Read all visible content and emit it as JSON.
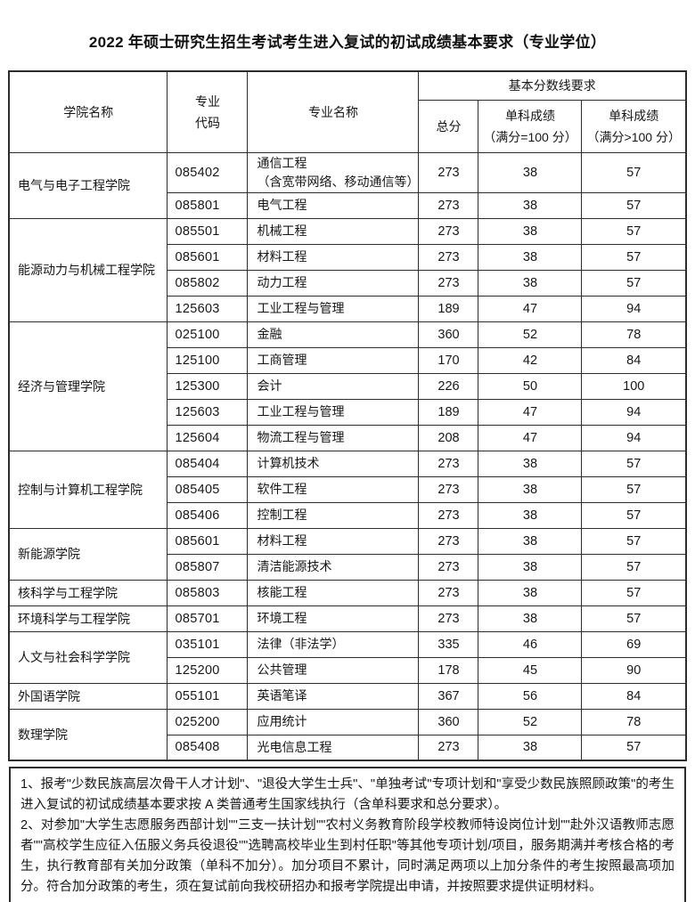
{
  "page": {
    "title": "2022 年硕士研究生招生考试考生进入复试的初试成绩基本要求（专业学位）"
  },
  "table": {
    "header": {
      "college": "学院名称",
      "code": "专业\n代码",
      "major": "专业名称",
      "score_group": "基本分数线要求",
      "total": "总分",
      "single_eq100": "单科成绩\n（满分=100 分）",
      "single_gt100": "单科成绩\n（满分>100 分）"
    },
    "colleges": [
      {
        "name": "电气与电子工程学院",
        "majors": [
          {
            "code": "085402",
            "name": "通信工程\n（含宽带网络、移动通信等）",
            "two_line": true,
            "total": "273",
            "eq100": "38",
            "gt100": "57"
          },
          {
            "code": "085801",
            "name": "电气工程",
            "total": "273",
            "eq100": "38",
            "gt100": "57"
          }
        ]
      },
      {
        "name": "能源动力与机械工程学院",
        "majors": [
          {
            "code": "085501",
            "name": "机械工程",
            "total": "273",
            "eq100": "38",
            "gt100": "57"
          },
          {
            "code": "085601",
            "name": "材料工程",
            "total": "273",
            "eq100": "38",
            "gt100": "57"
          },
          {
            "code": "085802",
            "name": "动力工程",
            "total": "273",
            "eq100": "38",
            "gt100": "57"
          },
          {
            "code": "125603",
            "name": "工业工程与管理",
            "total": "189",
            "eq100": "47",
            "gt100": "94"
          }
        ]
      },
      {
        "name": "经济与管理学院",
        "majors": [
          {
            "code": "025100",
            "name": "金融",
            "total": "360",
            "eq100": "52",
            "gt100": "78"
          },
          {
            "code": "125100",
            "name": "工商管理",
            "total": "170",
            "eq100": "42",
            "gt100": "84"
          },
          {
            "code": "125300",
            "name": "会计",
            "total": "226",
            "eq100": "50",
            "gt100": "100"
          },
          {
            "code": "125603",
            "name": "工业工程与管理",
            "total": "189",
            "eq100": "47",
            "gt100": "94"
          },
          {
            "code": "125604",
            "name": "物流工程与管理",
            "total": "208",
            "eq100": "47",
            "gt100": "94"
          }
        ]
      },
      {
        "name": "控制与计算机工程学院",
        "majors": [
          {
            "code": "085404",
            "name": "计算机技术",
            "total": "273",
            "eq100": "38",
            "gt100": "57"
          },
          {
            "code": "085405",
            "name": "软件工程",
            "total": "273",
            "eq100": "38",
            "gt100": "57"
          },
          {
            "code": "085406",
            "name": "控制工程",
            "total": "273",
            "eq100": "38",
            "gt100": "57"
          }
        ]
      },
      {
        "name": "新能源学院",
        "majors": [
          {
            "code": "085601",
            "name": "材料工程",
            "total": "273",
            "eq100": "38",
            "gt100": "57"
          },
          {
            "code": "085807",
            "name": "清洁能源技术",
            "total": "273",
            "eq100": "38",
            "gt100": "57"
          }
        ]
      },
      {
        "name": "核科学与工程学院",
        "majors": [
          {
            "code": "085803",
            "name": "核能工程",
            "total": "273",
            "eq100": "38",
            "gt100": "57"
          }
        ]
      },
      {
        "name": "环境科学与工程学院",
        "majors": [
          {
            "code": "085701",
            "name": "环境工程",
            "total": "273",
            "eq100": "38",
            "gt100": "57"
          }
        ]
      },
      {
        "name": "人文与社会科学学院",
        "majors": [
          {
            "code": "035101",
            "name": "法律（非法学）",
            "total": "335",
            "eq100": "46",
            "gt100": "69"
          },
          {
            "code": "125200",
            "name": "公共管理",
            "total": "178",
            "eq100": "45",
            "gt100": "90"
          }
        ]
      },
      {
        "name": "外国语学院",
        "majors": [
          {
            "code": "055101",
            "name": "英语笔译",
            "total": "367",
            "eq100": "56",
            "gt100": "84"
          }
        ]
      },
      {
        "name": "数理学院",
        "majors": [
          {
            "code": "025200",
            "name": "应用统计",
            "total": "360",
            "eq100": "52",
            "gt100": "78"
          },
          {
            "code": "085408",
            "name": "光电信息工程",
            "total": "273",
            "eq100": "38",
            "gt100": "57"
          }
        ]
      }
    ]
  },
  "notes": [
    "1、报考\"少数民族高层次骨干人才计划\"、\"退役大学生士兵\"、\"单独考试\"专项计划和\"享受少数民族照顾政策\"的考生进入复试的初试成绩基本要求按 A 类普通考生国家线执行（含单科要求和总分要求）。",
    "2、对参加\"大学生志愿服务西部计划\"\"三支一扶计划\"\"农村义务教育阶段学校教师特设岗位计划\"\"赴外汉语教师志愿者\"\"高校学生应征入伍服义务兵役退役\"\"选聘高校毕业生到村任职\"等其他专项计划/项目，服务期满并考核合格的考生，执行教育部有关加分政策（单科不加分）。加分项目不累计，同时满足两项以上加分条件的考生按照最高项加分。符合加分政策的考生，须在复试前向我校研招办和报考学院提出申请，并按照要求提供证明材料。"
  ]
}
